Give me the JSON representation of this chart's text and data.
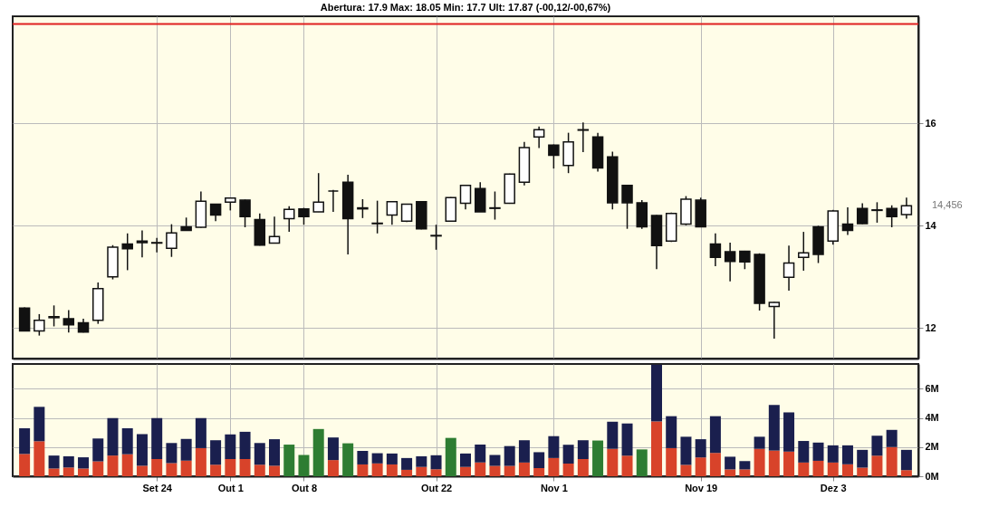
{
  "chart_data": [
    {
      "type": "candlestick",
      "subtitle": "Abertura: 17.9 Max: 18.05 Min: 17.7 Ult: 17.87 (-00,12/-00,67%)",
      "categories": [
        null,
        null,
        null,
        null,
        null,
        null,
        null,
        null,
        null,
        null,
        null,
        null,
        null,
        null,
        null,
        null,
        null,
        null,
        null,
        null,
        null,
        null,
        null,
        null,
        null,
        null,
        null,
        null,
        null,
        null,
        null,
        null,
        null,
        null,
        null,
        null,
        null,
        null,
        null,
        null,
        null,
        null,
        null,
        null,
        null,
        null,
        null,
        null,
        null,
        null,
        null,
        null,
        null,
        null,
        null,
        null,
        null,
        null,
        null,
        null,
        null
      ],
      "ohlc": [
        [
          12.39,
          12.4,
          11.93,
          11.94
        ],
        [
          11.94,
          12.27,
          11.85,
          12.15
        ],
        [
          12.22,
          12.44,
          12.03,
          12.2
        ],
        [
          12.18,
          12.35,
          11.91,
          12.06
        ],
        [
          12.1,
          12.18,
          11.91,
          11.92
        ],
        [
          12.15,
          12.89,
          12.08,
          12.77
        ],
        [
          13.0,
          13.62,
          12.95,
          13.58
        ],
        [
          13.64,
          13.85,
          13.13,
          13.55
        ],
        [
          13.7,
          13.91,
          13.38,
          13.67
        ],
        [
          13.66,
          13.76,
          13.48,
          13.67
        ],
        [
          13.56,
          14.03,
          13.39,
          13.86
        ],
        [
          13.98,
          14.16,
          13.91,
          13.91
        ],
        [
          13.97,
          14.67,
          13.96,
          14.48
        ],
        [
          14.42,
          14.43,
          14.09,
          14.21
        ],
        [
          14.46,
          14.55,
          14.3,
          14.54
        ],
        [
          14.5,
          14.51,
          13.97,
          14.18
        ],
        [
          14.12,
          14.24,
          13.61,
          13.62
        ],
        [
          13.66,
          14.18,
          13.65,
          13.79
        ],
        [
          14.14,
          14.38,
          13.88,
          14.32
        ],
        [
          14.33,
          14.35,
          14.02,
          14.18
        ],
        [
          14.27,
          15.03,
          14.27,
          14.46
        ],
        [
          14.68,
          14.7,
          14.27,
          14.68
        ],
        [
          14.85,
          15.0,
          13.44,
          14.14
        ],
        [
          14.35,
          14.52,
          14.15,
          14.33
        ],
        [
          14.05,
          14.49,
          13.85,
          14.04
        ],
        [
          14.21,
          14.48,
          14.02,
          14.47
        ],
        [
          14.09,
          14.43,
          14.07,
          14.42
        ],
        [
          14.47,
          14.48,
          13.93,
          13.94
        ],
        [
          13.81,
          14.02,
          13.53,
          13.8
        ],
        [
          14.09,
          14.56,
          14.08,
          14.55
        ],
        [
          14.44,
          14.8,
          14.32,
          14.79
        ],
        [
          14.73,
          14.85,
          14.27,
          14.27
        ],
        [
          14.35,
          14.67,
          14.12,
          14.34
        ],
        [
          14.44,
          15.02,
          14.43,
          15.01
        ],
        [
          14.85,
          15.64,
          14.79,
          15.53
        ],
        [
          15.74,
          15.94,
          15.52,
          15.88
        ],
        [
          15.58,
          15.59,
          15.12,
          15.38
        ],
        [
          15.18,
          15.82,
          15.03,
          15.64
        ],
        [
          15.88,
          16.02,
          15.44,
          15.87
        ],
        [
          15.74,
          15.82,
          15.06,
          15.13
        ],
        [
          15.35,
          15.45,
          14.32,
          14.45
        ],
        [
          14.79,
          14.8,
          13.94,
          14.45
        ],
        [
          14.45,
          14.5,
          13.94,
          13.98
        ],
        [
          14.2,
          14.21,
          13.15,
          13.61
        ],
        [
          13.7,
          14.26,
          13.68,
          14.24
        ],
        [
          14.03,
          14.58,
          14.01,
          14.52
        ],
        [
          14.5,
          14.55,
          13.97,
          13.98
        ],
        [
          13.64,
          13.85,
          13.21,
          13.38
        ],
        [
          13.49,
          13.67,
          12.91,
          13.3
        ],
        [
          13.5,
          13.51,
          13.15,
          13.29
        ],
        [
          13.44,
          13.46,
          12.34,
          12.48
        ],
        [
          12.42,
          12.51,
          11.79,
          12.5
        ],
        [
          12.99,
          13.61,
          12.73,
          13.27
        ],
        [
          13.38,
          13.88,
          13.12,
          13.47
        ],
        [
          13.98,
          14.0,
          13.27,
          13.44
        ],
        [
          13.7,
          14.31,
          13.63,
          14.29
        ],
        [
          14.03,
          14.36,
          13.82,
          13.91
        ],
        [
          14.34,
          14.44,
          14.03,
          14.04
        ],
        [
          14.31,
          14.46,
          14.06,
          14.3
        ],
        [
          14.34,
          14.4,
          13.97,
          14.18
        ],
        [
          14.22,
          14.55,
          14.14,
          14.39
        ]
      ],
      "ylim": [
        11.4,
        18.1
      ],
      "yticks": [
        12,
        14,
        16
      ],
      "grid": true,
      "tick_labels": "y",
      "ref_lines": [
        {
          "axis": "y",
          "value": 17.95,
          "label": null,
          "color": "#e02020"
        }
      ],
      "annotations": [
        "14,456"
      ]
    },
    {
      "type": "bar",
      "stacked": true,
      "categories": [
        null,
        null,
        null,
        null,
        null,
        null,
        null,
        null,
        null,
        "Set 24",
        null,
        null,
        null,
        null,
        "Out 1",
        null,
        null,
        null,
        null,
        "Out 8",
        null,
        null,
        null,
        null,
        null,
        null,
        null,
        null,
        "Out 22",
        null,
        null,
        null,
        null,
        null,
        null,
        null,
        "Nov 1",
        null,
        null,
        null,
        null,
        null,
        null,
        null,
        null,
        null,
        "Nov 19",
        null,
        null,
        null,
        null,
        null,
        null,
        null,
        null,
        "Dez 3",
        null,
        null,
        null,
        null,
        null
      ],
      "series": [
        {
          "color": "#d8432a",
          "values": [
            1.53,
            2.4,
            0.53,
            0.6,
            0.53,
            1.02,
            1.42,
            1.51,
            0.72,
            1.18,
            0.9,
            1.07,
            1.93,
            0.79,
            1.18,
            1.18,
            0.79,
            0.72,
            null,
            null,
            null,
            1.11,
            null,
            0.81,
            0.88,
            0.81,
            0.44,
            0.64,
            0.48,
            null,
            0.64,
            0.95,
            0.71,
            0.71,
            0.94,
            0.56,
            1.25,
            0.87,
            1.18,
            null,
            1.88,
            1.41,
            null,
            3.76,
            1.93,
            0.78,
            1.29,
            1.6,
            0.47,
            0.47,
            1.88,
            1.76,
            1.69,
            0.94,
            1.06,
            0.94,
            0.82,
            0.59,
            1.41,
            2.0,
            0.42
          ]
        },
        {
          "color": "#1a1f4e",
          "values": [
            1.76,
            2.36,
            0.89,
            0.77,
            0.77,
            1.57,
            2.57,
            1.78,
            2.17,
            2.81,
            1.38,
            1.49,
            2.06,
            1.68,
            1.69,
            1.87,
            1.49,
            1.82,
            null,
            null,
            null,
            1.55,
            null,
            0.93,
            0.7,
            0.75,
            0.81,
            0.73,
            0.96,
            null,
            0.92,
            1.22,
            0.75,
            1.36,
            1.53,
            1.09,
            1.5,
            1.29,
            1.29,
            null,
            1.86,
            2.21,
            null,
            3.89,
            2.19,
            1.93,
            1.25,
            2.52,
            0.87,
            0.57,
            0.83,
            3.13,
            2.69,
            1.48,
            1.25,
            1.18,
            1.3,
            1.22,
            1.37,
            1.18,
            1.39
          ]
        },
        {
          "color": "#2e7d32",
          "values": [
            null,
            null,
            null,
            null,
            null,
            null,
            null,
            null,
            null,
            null,
            null,
            null,
            null,
            null,
            null,
            null,
            null,
            null,
            2.17,
            1.46,
            3.24,
            null,
            2.26,
            null,
            null,
            null,
            null,
            null,
            null,
            2.63,
            null,
            null,
            null,
            null,
            null,
            null,
            null,
            null,
            null,
            2.45,
            null,
            null,
            1.84,
            null,
            null,
            null,
            null,
            null,
            null,
            null,
            null,
            null,
            null,
            null,
            null,
            null,
            null,
            null,
            null,
            null,
            null
          ]
        }
      ],
      "ylim": [
        0,
        7.7
      ],
      "yticks": [
        {
          "value": 0,
          "label": "0M"
        },
        {
          "value": 2,
          "label": "2M"
        },
        {
          "value": 4,
          "label": "4M"
        },
        {
          "value": 6,
          "label": "6M"
        }
      ],
      "grid": true
    }
  ]
}
